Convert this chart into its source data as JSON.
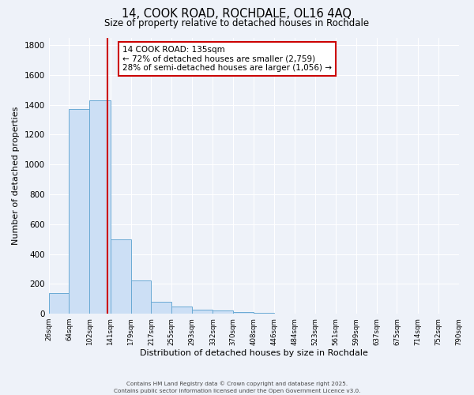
{
  "title": "14, COOK ROAD, ROCHDALE, OL16 4AQ",
  "subtitle": "Size of property relative to detached houses in Rochdale",
  "xlabel": "Distribution of detached houses by size in Rochdale",
  "ylabel": "Number of detached properties",
  "bin_edges": [
    26,
    64,
    102,
    141,
    179,
    217,
    255,
    293,
    332,
    370,
    408,
    446,
    484,
    523,
    561,
    599,
    637,
    675,
    714,
    752,
    790
  ],
  "bar_heights": [
    140,
    1370,
    1430,
    500,
    225,
    80,
    50,
    30,
    20,
    10,
    5,
    2,
    1,
    0,
    0,
    0,
    0,
    0,
    0,
    0
  ],
  "bar_color": "#ccdff5",
  "bar_edgecolor": "#6aaad4",
  "x_tick_labels": [
    "26sqm",
    "64sqm",
    "102sqm",
    "141sqm",
    "179sqm",
    "217sqm",
    "255sqm",
    "293sqm",
    "332sqm",
    "370sqm",
    "408sqm",
    "446sqm",
    "484sqm",
    "523sqm",
    "561sqm",
    "599sqm",
    "637sqm",
    "675sqm",
    "714sqm",
    "752sqm",
    "790sqm"
  ],
  "ylim": [
    0,
    1850
  ],
  "property_line_x": 135,
  "property_line_color": "#cc0000",
  "annotation_title": "14 COOK ROAD: 135sqm",
  "annotation_line1": "← 72% of detached houses are smaller (2,759)",
  "annotation_line2": "28% of semi-detached houses are larger (1,056) →",
  "annotation_box_color": "#ffffff",
  "annotation_box_edgecolor": "#cc0000",
  "footer1": "Contains HM Land Registry data © Crown copyright and database right 2025.",
  "footer2": "Contains public sector information licensed under the Open Government Licence v3.0.",
  "background_color": "#eef2f9",
  "grid_color": "#ffffff",
  "yticks": [
    0,
    200,
    400,
    600,
    800,
    1000,
    1200,
    1400,
    1600,
    1800
  ]
}
